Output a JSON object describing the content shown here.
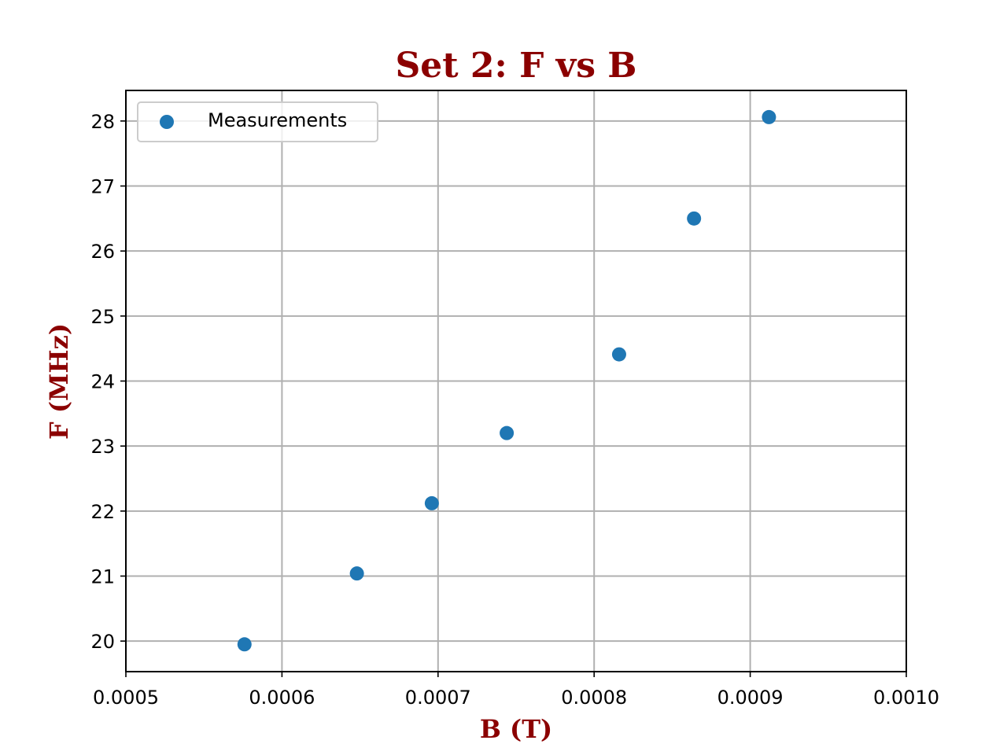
{
  "chart_data": {
    "type": "scatter",
    "title": "Set 2: F vs B",
    "xlabel": "B (T)",
    "ylabel": "F (MHz)",
    "xlim": [
      0.0005,
      0.001
    ],
    "ylim": [
      19.53,
      28.47
    ],
    "xticks": [
      0.0005,
      0.0006,
      0.0007,
      0.0008,
      0.0009,
      0.001
    ],
    "xtick_labels": [
      "0.0005",
      "0.0006",
      "0.0007",
      "0.0008",
      "0.0009",
      "0.0010"
    ],
    "yticks": [
      20,
      21,
      22,
      23,
      24,
      25,
      26,
      27,
      28
    ],
    "ytick_labels": [
      "20",
      "21",
      "22",
      "23",
      "24",
      "25",
      "26",
      "27",
      "28"
    ],
    "grid": true,
    "legend_position": "upper-left",
    "series": [
      {
        "name": "Measurements",
        "color": "#1f77b4",
        "x": [
          0.000576,
          0.000648,
          0.000696,
          0.000744,
          0.000816,
          0.000864,
          0.000912
        ],
        "y": [
          19.95,
          21.04,
          22.12,
          23.2,
          24.41,
          26.5,
          28.06
        ]
      }
    ]
  }
}
